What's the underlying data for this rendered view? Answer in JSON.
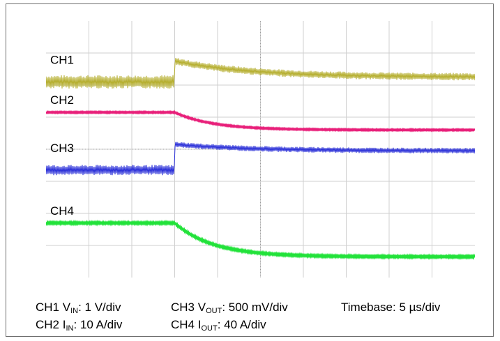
{
  "chart_data": {
    "type": "line",
    "title": "",
    "grid": true,
    "divisions": {
      "x": 10,
      "y": 8
    },
    "transient_at_div": 3,
    "series": [
      {
        "name": "CH1",
        "color": "#b5ae2e",
        "noise_div": 0.42,
        "levels_div": {
          "before": 6.1,
          "peak": 6.75,
          "after": 6.25
        }
      },
      {
        "name": "CH2",
        "color": "#e8207a",
        "noise_div": 0.04,
        "levels_div": {
          "before": 5.15,
          "after": 4.6
        }
      },
      {
        "name": "CH3",
        "color": "#2a2fd8",
        "noise_div": 0.32,
        "levels_div": {
          "before": 3.35,
          "peak": 4.15,
          "after": 3.95
        }
      },
      {
        "name": "CH4",
        "color": "#22e23a",
        "noise_div": 0.06,
        "levels_div": {
          "before": 1.7,
          "after": 0.65
        }
      }
    ],
    "legend": [
      {
        "ch": "CH1 V",
        "sub": "IN",
        "scale": ": 1 V/div"
      },
      {
        "ch": "CH2 I",
        "sub": "IN",
        "scale": ": 10 A/div"
      },
      {
        "ch": "CH3 V",
        "sub": "OUT",
        "scale": ": 500 mV/div"
      },
      {
        "ch": "CH4 I",
        "sub": "OUT",
        "scale": ": 40 A/div"
      },
      {
        "text": "Timebase: 5 µs/div"
      }
    ]
  }
}
